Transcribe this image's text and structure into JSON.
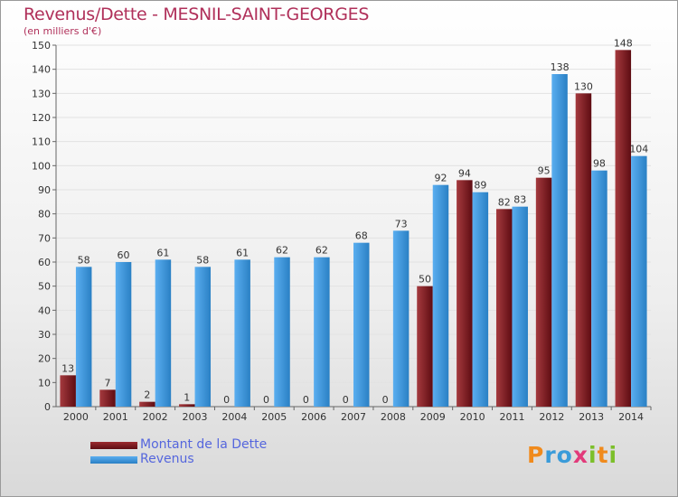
{
  "chart_data": {
    "type": "bar",
    "title": "Revenus/Dette - MESNIL-SAINT-GEORGES",
    "subtitle": "(en milliers d'€)",
    "categories": [
      "2000",
      "2001",
      "2002",
      "2003",
      "2004",
      "2005",
      "2006",
      "2007",
      "2008",
      "2009",
      "2010",
      "2011",
      "2012",
      "2013",
      "2014"
    ],
    "series": [
      {
        "name": "Montant de la Dette",
        "color": "#7a1f24",
        "values": [
          13,
          7,
          2,
          1,
          0,
          0,
          0,
          0,
          0,
          50,
          94,
          82,
          95,
          130,
          148
        ]
      },
      {
        "name": "Revenus",
        "color": "#3d98da",
        "values": [
          58,
          60,
          61,
          58,
          61,
          62,
          62,
          68,
          73,
          92,
          89,
          83,
          138,
          98,
          104
        ]
      }
    ],
    "ylim": [
      0,
      150
    ],
    "yticks": [
      0,
      10,
      20,
      30,
      40,
      50,
      60,
      70,
      80,
      90,
      100,
      110,
      120,
      130,
      140,
      150
    ],
    "grid": true,
    "legend": "bottom-left"
  },
  "logo": {
    "letters": [
      "P",
      "r",
      "o",
      "x",
      "i",
      "t",
      "i"
    ],
    "colors": [
      "#f08a1c",
      "#3a9bd9",
      "#3a9bd9",
      "#e23a7a",
      "#7cbf2a",
      "#f08a1c",
      "#7cbf2a"
    ]
  }
}
